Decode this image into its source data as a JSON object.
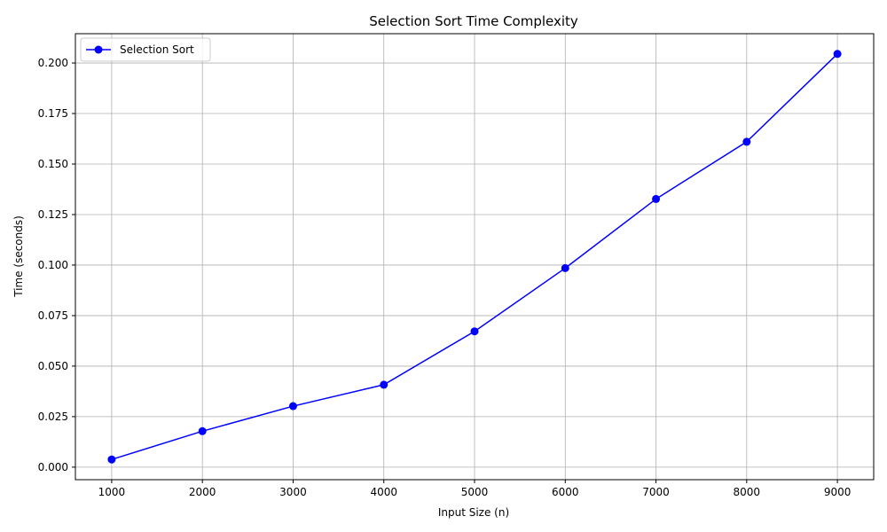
{
  "chart_data": {
    "type": "line",
    "title": "Selection Sort Time Complexity",
    "xlabel": "Input Size (n)",
    "ylabel": "Time (seconds)",
    "x": [
      1000,
      2000,
      3000,
      4000,
      5000,
      6000,
      7000,
      8000,
      9000
    ],
    "series": [
      {
        "name": "Selection Sort",
        "color": "#0000ff",
        "marker": "circle",
        "values": [
          0.0038,
          0.0178,
          0.0302,
          0.0408,
          0.0672,
          0.0985,
          0.1327,
          0.161,
          0.2045
        ]
      }
    ],
    "xticks": [
      1000,
      2000,
      3000,
      4000,
      5000,
      6000,
      7000,
      8000,
      9000
    ],
    "yticks": [
      0.0,
      0.025,
      0.05,
      0.075,
      0.1,
      0.125,
      0.15,
      0.175,
      0.2
    ],
    "ytick_labels": [
      "0.000",
      "0.025",
      "0.050",
      "0.075",
      "0.100",
      "0.125",
      "0.150",
      "0.175",
      "0.200"
    ],
    "xlim": [
      600,
      9400
    ],
    "ylim": [
      -0.0062,
      0.2145
    ],
    "grid": true,
    "legend_position": "top-left"
  }
}
